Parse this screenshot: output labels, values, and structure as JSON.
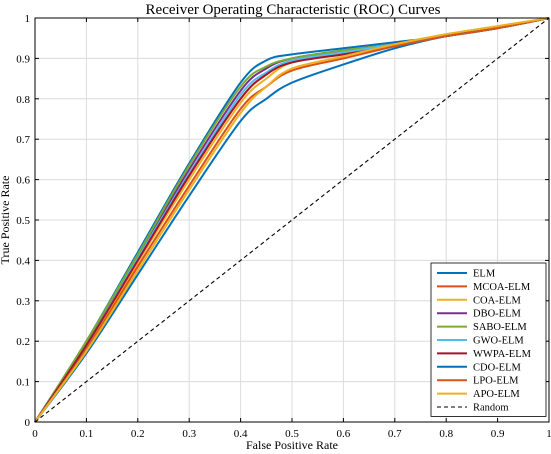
{
  "chart_data": {
    "type": "line",
    "title": "Receiver Operating Characteristic (ROC) Curves",
    "xlabel": "False Positive Rate",
    "ylabel": "True Positive Rate",
    "xlim": [
      0,
      1
    ],
    "ylim": [
      0,
      1
    ],
    "xticks": [
      "0",
      "0.1",
      "0.2",
      "0.3",
      "0.4",
      "0.5",
      "0.6",
      "0.7",
      "0.8",
      "0.9",
      "1"
    ],
    "yticks": [
      "0",
      "0.1",
      "0.2",
      "0.3",
      "0.4",
      "0.5",
      "0.6",
      "0.7",
      "0.8",
      "0.9",
      "1"
    ],
    "grid": true,
    "legend_position": "bottom-right",
    "series": [
      {
        "name": "ELM",
        "color": "#0072BD",
        "x": [
          0,
          0.1,
          0.2,
          0.3,
          0.4,
          0.45,
          0.5,
          0.6,
          0.7,
          0.8,
          0.9,
          1
        ],
        "y": [
          0,
          0.2,
          0.42,
          0.64,
          0.84,
          0.895,
          0.91,
          0.925,
          0.94,
          0.955,
          0.975,
          1
        ]
      },
      {
        "name": "MCOA-ELM",
        "color": "#D95319",
        "x": [
          0,
          0.1,
          0.2,
          0.3,
          0.4,
          0.45,
          0.5,
          0.6,
          0.7,
          0.8,
          0.9,
          1
        ],
        "y": [
          0,
          0.19,
          0.4,
          0.61,
          0.8,
          0.86,
          0.895,
          0.915,
          0.935,
          0.955,
          0.975,
          1
        ]
      },
      {
        "name": "COA-ELM",
        "color": "#EDB120",
        "x": [
          0,
          0.1,
          0.2,
          0.3,
          0.4,
          0.45,
          0.5,
          0.6,
          0.7,
          0.8,
          0.9,
          1
        ],
        "y": [
          0,
          0.185,
          0.395,
          0.6,
          0.79,
          0.85,
          0.89,
          0.915,
          0.935,
          0.955,
          0.975,
          1
        ]
      },
      {
        "name": "DBO-ELM",
        "color": "#7E2F8E",
        "x": [
          0,
          0.1,
          0.2,
          0.3,
          0.4,
          0.45,
          0.5,
          0.6,
          0.7,
          0.8,
          0.9,
          1
        ],
        "y": [
          0,
          0.195,
          0.41,
          0.625,
          0.82,
          0.875,
          0.9,
          0.92,
          0.935,
          0.955,
          0.975,
          1
        ]
      },
      {
        "name": "SABO-ELM",
        "color": "#77AC30",
        "x": [
          0,
          0.1,
          0.2,
          0.3,
          0.4,
          0.45,
          0.5,
          0.6,
          0.7,
          0.8,
          0.9,
          1
        ],
        "y": [
          0,
          0.2,
          0.415,
          0.635,
          0.83,
          0.88,
          0.9,
          0.92,
          0.935,
          0.955,
          0.975,
          1
        ]
      },
      {
        "name": "GWO-ELM",
        "color": "#4DBEEE",
        "x": [
          0,
          0.1,
          0.2,
          0.3,
          0.4,
          0.45,
          0.5,
          0.6,
          0.7,
          0.8,
          0.9,
          1
        ],
        "y": [
          0,
          0.19,
          0.405,
          0.615,
          0.81,
          0.865,
          0.895,
          0.915,
          0.935,
          0.955,
          0.975,
          1
        ]
      },
      {
        "name": "WWPA-ELM",
        "color": "#A2142F",
        "x": [
          0,
          0.1,
          0.2,
          0.3,
          0.4,
          0.45,
          0.5,
          0.6,
          0.7,
          0.8,
          0.9,
          1
        ],
        "y": [
          0,
          0.19,
          0.4,
          0.61,
          0.8,
          0.86,
          0.89,
          0.91,
          0.93,
          0.955,
          0.975,
          1
        ]
      },
      {
        "name": "CDO-ELM",
        "color": "#0072BD",
        "x": [
          0,
          0.1,
          0.2,
          0.3,
          0.4,
          0.45,
          0.5,
          0.6,
          0.7,
          0.8,
          0.9,
          1
        ],
        "y": [
          0,
          0.17,
          0.365,
          0.56,
          0.745,
          0.8,
          0.84,
          0.885,
          0.925,
          0.955,
          0.975,
          1
        ]
      },
      {
        "name": "LPO-ELM",
        "color": "#D95319",
        "x": [
          0,
          0.1,
          0.2,
          0.3,
          0.4,
          0.45,
          0.5,
          0.6,
          0.7,
          0.8,
          0.9,
          1
        ],
        "y": [
          0,
          0.18,
          0.385,
          0.585,
          0.775,
          0.83,
          0.87,
          0.9,
          0.93,
          0.955,
          0.975,
          1
        ]
      },
      {
        "name": "APO-ELM",
        "color": "#EDB120",
        "x": [
          0,
          0.1,
          0.2,
          0.3,
          0.4,
          0.45,
          0.5,
          0.6,
          0.7,
          0.8,
          0.9,
          1
        ],
        "y": [
          0,
          0.175,
          0.375,
          0.575,
          0.765,
          0.83,
          0.875,
          0.905,
          0.935,
          0.96,
          0.98,
          1
        ]
      },
      {
        "name": "Random",
        "color": "#000000",
        "dashed": true,
        "x": [
          0,
          1
        ],
        "y": [
          0,
          1
        ]
      }
    ]
  }
}
